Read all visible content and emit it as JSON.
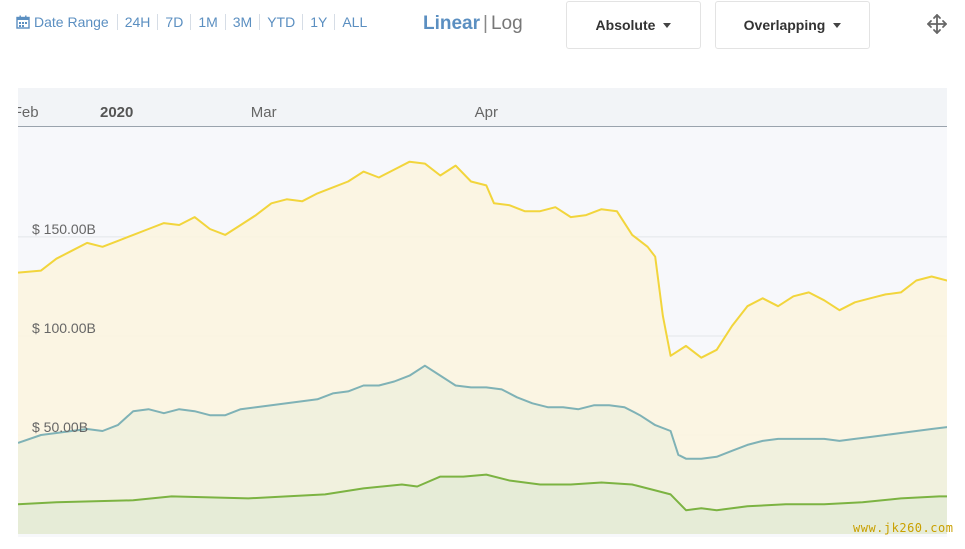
{
  "toolbar": {
    "date_range_label": "Date Range",
    "ranges": [
      "24H",
      "7D",
      "1M",
      "3M",
      "YTD",
      "1Y",
      "ALL"
    ],
    "scale_linear": "Linear",
    "scale_separator": "|",
    "scale_log": "Log",
    "mode_dropdown": "Absolute",
    "stack_dropdown": "Overlapping",
    "accent_color": "#5b8fc1"
  },
  "watermark": "www.jk260.com",
  "chart_data": {
    "type": "area",
    "title": "",
    "x_ticks": [
      "2020",
      "Feb",
      "Mar",
      "Apr"
    ],
    "y_ticks": [
      "$ 150.00B",
      "$ 100.00B",
      "$ 50.00B"
    ],
    "y_tick_values": [
      150,
      100,
      50
    ],
    "ylim": [
      0,
      205
    ],
    "grid": true,
    "legend": "none",
    "x_start": "2019-12-31",
    "x_end": "2020-04-30",
    "series": [
      {
        "color": "#f2d53c",
        "fill": "#fbf4de",
        "values": [
          [
            0,
            132
          ],
          [
            3,
            133
          ],
          [
            5,
            139
          ],
          [
            7,
            143
          ],
          [
            9,
            147
          ],
          [
            11,
            145
          ],
          [
            13,
            148
          ],
          [
            15,
            151
          ],
          [
            17,
            154
          ],
          [
            19,
            157
          ],
          [
            21,
            156
          ],
          [
            23,
            160
          ],
          [
            25,
            154
          ],
          [
            27,
            151
          ],
          [
            29,
            156
          ],
          [
            31,
            161
          ],
          [
            33,
            167
          ],
          [
            35,
            169
          ],
          [
            37,
            168
          ],
          [
            39,
            172
          ],
          [
            41,
            175
          ],
          [
            43,
            178
          ],
          [
            45,
            183
          ],
          [
            47,
            180
          ],
          [
            49,
            184
          ],
          [
            51,
            188
          ],
          [
            53,
            187
          ],
          [
            55,
            181
          ],
          [
            57,
            186
          ],
          [
            59,
            178
          ],
          [
            61,
            176
          ],
          [
            62,
            167
          ],
          [
            64,
            166
          ],
          [
            66,
            163
          ],
          [
            68,
            163
          ],
          [
            70,
            165
          ],
          [
            72,
            160
          ],
          [
            74,
            161
          ],
          [
            76,
            164
          ],
          [
            78,
            163
          ],
          [
            80,
            151
          ],
          [
            82,
            145
          ],
          [
            83,
            140
          ],
          [
            84,
            110
          ],
          [
            85,
            90
          ],
          [
            87,
            95
          ],
          [
            89,
            89
          ],
          [
            91,
            93
          ],
          [
            93,
            105
          ],
          [
            95,
            115
          ],
          [
            97,
            119
          ],
          [
            99,
            115
          ],
          [
            101,
            120
          ],
          [
            103,
            122
          ],
          [
            105,
            118
          ],
          [
            107,
            113
          ],
          [
            109,
            117
          ],
          [
            111,
            119
          ],
          [
            113,
            121
          ],
          [
            115,
            122
          ],
          [
            117,
            128
          ],
          [
            119,
            130
          ],
          [
            121,
            128
          ],
          [
            123,
            126
          ],
          [
            125,
            125
          ],
          [
            127,
            127
          ],
          [
            129,
            126
          ],
          [
            131,
            130
          ],
          [
            133,
            131
          ],
          [
            135,
            134
          ],
          [
            137,
            136
          ],
          [
            139,
            139
          ],
          [
            141,
            142
          ],
          [
            143,
            144
          ],
          [
            145,
            155
          ],
          [
            147,
            164
          ],
          [
            149,
            164
          ],
          [
            151,
            168
          ],
          [
            153,
            165
          ],
          [
            155,
            171
          ],
          [
            156,
            180
          ],
          [
            157,
            182
          ],
          [
            158,
            180
          ],
          [
            159,
            160
          ]
        ]
      },
      {
        "color": "#7fb2b6",
        "fill": "#eef0dd",
        "values": [
          [
            0,
            46
          ],
          [
            3,
            50
          ],
          [
            5,
            51
          ],
          [
            7,
            52
          ],
          [
            9,
            53
          ],
          [
            11,
            52
          ],
          [
            13,
            55
          ],
          [
            15,
            62
          ],
          [
            17,
            63
          ],
          [
            19,
            61
          ],
          [
            21,
            63
          ],
          [
            23,
            62
          ],
          [
            25,
            60
          ],
          [
            27,
            60
          ],
          [
            29,
            63
          ],
          [
            31,
            64
          ],
          [
            33,
            65
          ],
          [
            35,
            66
          ],
          [
            37,
            67
          ],
          [
            39,
            68
          ],
          [
            41,
            71
          ],
          [
            43,
            72
          ],
          [
            45,
            75
          ],
          [
            47,
            75
          ],
          [
            49,
            77
          ],
          [
            51,
            80
          ],
          [
            53,
            85
          ],
          [
            55,
            80
          ],
          [
            57,
            75
          ],
          [
            59,
            74
          ],
          [
            61,
            74
          ],
          [
            63,
            73
          ],
          [
            65,
            69
          ],
          [
            67,
            66
          ],
          [
            69,
            64
          ],
          [
            71,
            64
          ],
          [
            73,
            63
          ],
          [
            75,
            65
          ],
          [
            77,
            65
          ],
          [
            79,
            64
          ],
          [
            81,
            60
          ],
          [
            83,
            55
          ],
          [
            85,
            52
          ],
          [
            86,
            40
          ],
          [
            87,
            38
          ],
          [
            89,
            38
          ],
          [
            91,
            39
          ],
          [
            93,
            42
          ],
          [
            95,
            45
          ],
          [
            97,
            47
          ],
          [
            99,
            48
          ],
          [
            101,
            48
          ],
          [
            103,
            48
          ],
          [
            105,
            48
          ],
          [
            107,
            47
          ],
          [
            109,
            48
          ],
          [
            111,
            49
          ],
          [
            113,
            50
          ],
          [
            115,
            51
          ],
          [
            117,
            52
          ],
          [
            119,
            53
          ],
          [
            121,
            54
          ],
          [
            123,
            55
          ],
          [
            125,
            55
          ],
          [
            127,
            55
          ],
          [
            129,
            56
          ],
          [
            131,
            56
          ],
          [
            133,
            57
          ],
          [
            135,
            58
          ],
          [
            137,
            58
          ],
          [
            139,
            60
          ],
          [
            141,
            60
          ],
          [
            143,
            62
          ],
          [
            145,
            64
          ],
          [
            147,
            66
          ],
          [
            149,
            66
          ],
          [
            151,
            65
          ],
          [
            153,
            65
          ],
          [
            155,
            66
          ],
          [
            157,
            66
          ],
          [
            158,
            67
          ],
          [
            159,
            62
          ]
        ]
      },
      {
        "color": "#7cb342",
        "fill": "#e4ebd6",
        "values": [
          [
            0,
            15
          ],
          [
            5,
            16
          ],
          [
            10,
            16.5
          ],
          [
            15,
            17
          ],
          [
            20,
            19
          ],
          [
            25,
            18.5
          ],
          [
            30,
            18
          ],
          [
            35,
            19
          ],
          [
            40,
            20
          ],
          [
            45,
            23
          ],
          [
            50,
            25
          ],
          [
            52,
            24
          ],
          [
            55,
            29
          ],
          [
            58,
            29
          ],
          [
            61,
            30
          ],
          [
            64,
            27
          ],
          [
            68,
            25
          ],
          [
            72,
            25
          ],
          [
            76,
            26
          ],
          [
            80,
            25
          ],
          [
            83,
            22
          ],
          [
            85,
            20
          ],
          [
            87,
            12
          ],
          [
            89,
            13
          ],
          [
            91,
            12
          ],
          [
            93,
            13
          ],
          [
            95,
            14
          ],
          [
            100,
            15
          ],
          [
            105,
            15
          ],
          [
            110,
            16
          ],
          [
            115,
            18
          ],
          [
            120,
            19
          ],
          [
            125,
            19
          ],
          [
            130,
            19
          ],
          [
            135,
            20
          ],
          [
            140,
            21
          ],
          [
            145,
            22
          ],
          [
            150,
            22
          ],
          [
            155,
            23
          ],
          [
            158,
            23
          ],
          [
            159,
            22
          ]
        ]
      }
    ]
  }
}
